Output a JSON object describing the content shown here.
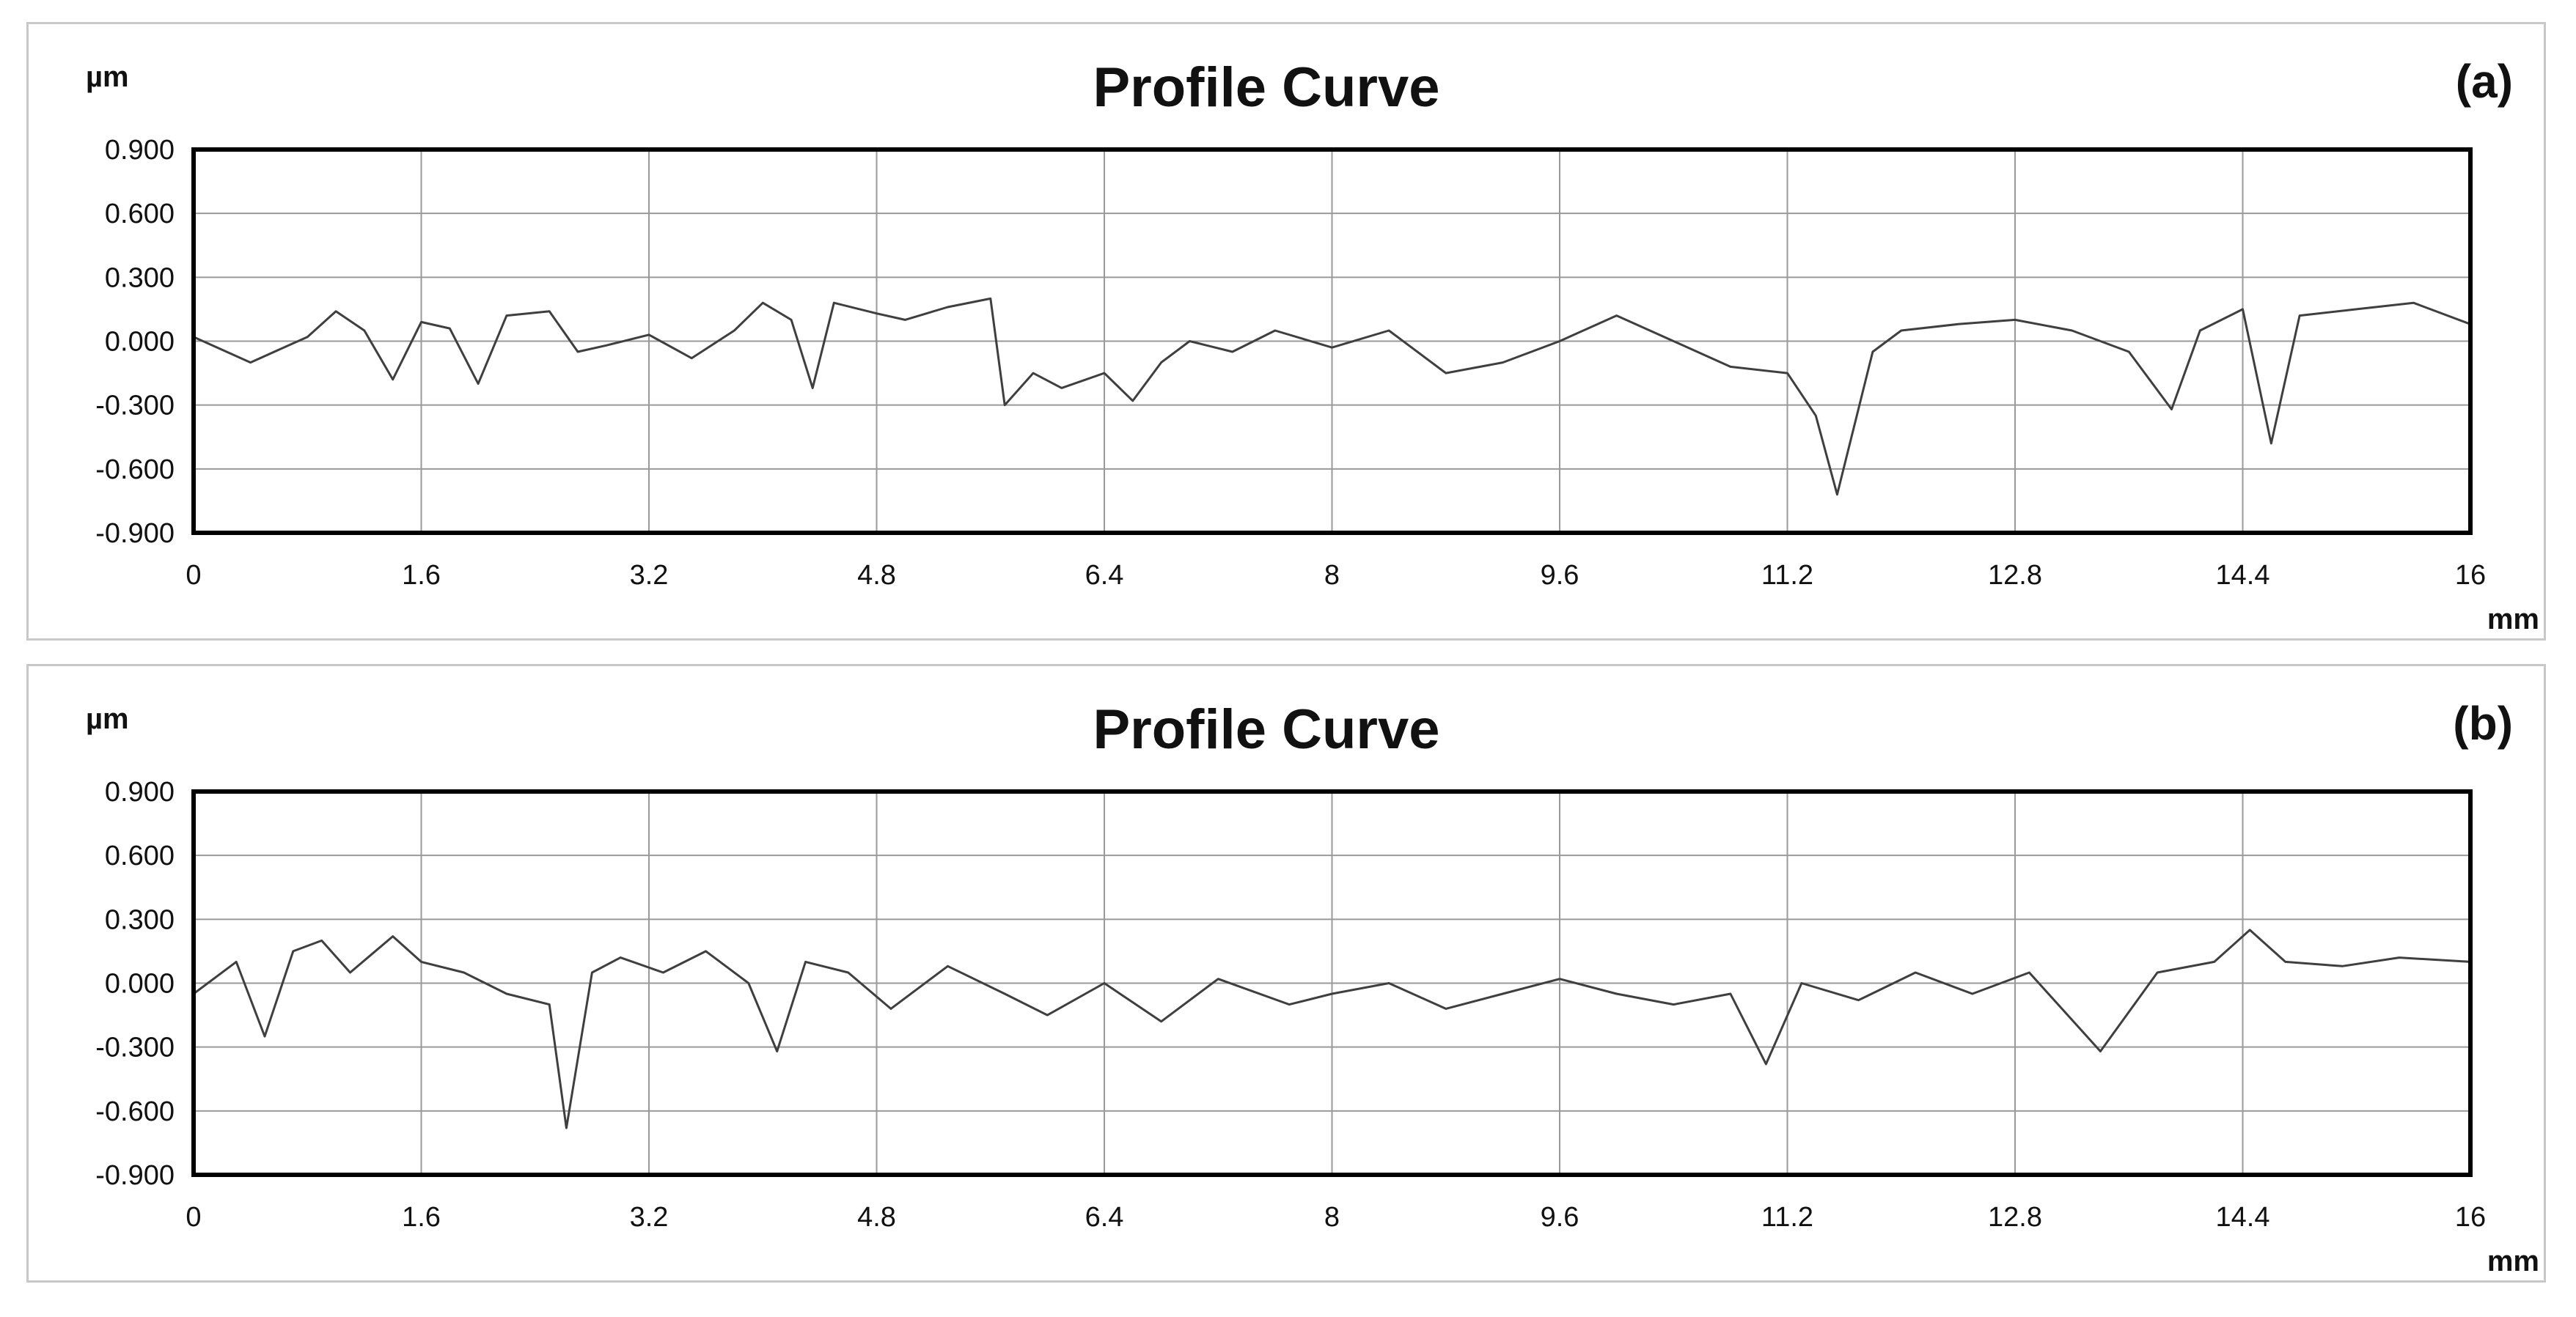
{
  "chart_data": [
    {
      "type": "line",
      "panel_label": "(a)",
      "title": "Profile Curve",
      "ylabel": "µm",
      "xlabel": "mm",
      "xlim": [
        0,
        16
      ],
      "ylim": [
        -0.9,
        0.9
      ],
      "x_ticks": [
        "0",
        "1.6",
        "3.2",
        "4.8",
        "6.4",
        "8",
        "9.6",
        "11.2",
        "12.8",
        "14.4",
        "16"
      ],
      "y_ticks": [
        "0.900",
        "0.600",
        "0.300",
        "0.000",
        "-0.300",
        "-0.600",
        "-0.900"
      ],
      "grid": true,
      "series": [
        {
          "x": [
            0,
            0.4,
            0.8,
            1.0,
            1.2,
            1.4,
            1.6,
            1.8,
            2.0,
            2.2,
            2.5,
            2.7,
            2.9,
            3.2,
            3.5,
            3.8,
            4.0,
            4.2,
            4.35,
            4.5,
            4.8,
            5.0,
            5.3,
            5.6,
            5.7,
            5.9,
            6.1,
            6.4,
            6.6,
            6.8,
            7.0,
            7.3,
            7.6,
            8.0,
            8.4,
            8.8,
            9.2,
            9.6,
            10.0,
            10.4,
            10.8,
            11.2,
            11.4,
            11.55,
            11.8,
            12.0,
            12.4,
            12.8,
            13.2,
            13.6,
            13.9,
            14.1,
            14.4,
            14.6,
            14.8,
            15.2,
            15.6,
            16.0
          ],
          "y": [
            0.02,
            -0.1,
            0.02,
            0.14,
            0.05,
            -0.18,
            0.09,
            0.06,
            -0.2,
            0.12,
            0.14,
            -0.05,
            -0.02,
            0.03,
            -0.08,
            0.05,
            0.18,
            0.1,
            -0.22,
            0.18,
            0.13,
            0.1,
            0.16,
            0.2,
            -0.3,
            -0.15,
            -0.22,
            -0.15,
            -0.28,
            -0.1,
            0.0,
            -0.05,
            0.05,
            -0.03,
            0.05,
            -0.15,
            -0.1,
            0.0,
            0.12,
            0.0,
            -0.12,
            -0.15,
            -0.35,
            -0.72,
            -0.05,
            0.05,
            0.08,
            0.1,
            0.05,
            -0.05,
            -0.32,
            0.05,
            0.15,
            -0.48,
            0.12,
            0.15,
            0.18,
            0.08
          ]
        }
      ]
    },
    {
      "type": "line",
      "panel_label": "(b)",
      "title": "Profile Curve",
      "ylabel": "µm",
      "xlabel": "mm",
      "xlim": [
        0,
        16
      ],
      "ylim": [
        -0.9,
        0.9
      ],
      "x_ticks": [
        "0",
        "1.6",
        "3.2",
        "4.8",
        "6.4",
        "8",
        "9.6",
        "11.2",
        "12.8",
        "14.4",
        "16"
      ],
      "y_ticks": [
        "0.900",
        "0.600",
        "0.300",
        "0.000",
        "-0.300",
        "-0.600",
        "-0.900"
      ],
      "grid": true,
      "series": [
        {
          "x": [
            0,
            0.3,
            0.5,
            0.7,
            0.9,
            1.1,
            1.4,
            1.6,
            1.9,
            2.2,
            2.5,
            2.62,
            2.8,
            3.0,
            3.3,
            3.6,
            3.9,
            4.1,
            4.3,
            4.6,
            4.9,
            5.3,
            5.7,
            6.0,
            6.4,
            6.8,
            7.2,
            7.7,
            8.0,
            8.4,
            8.8,
            9.2,
            9.6,
            10.0,
            10.4,
            10.8,
            11.05,
            11.3,
            11.7,
            12.1,
            12.5,
            12.9,
            13.4,
            13.8,
            14.2,
            14.45,
            14.7,
            15.1,
            15.5,
            16.0
          ],
          "y": [
            -0.05,
            0.1,
            -0.25,
            0.15,
            0.2,
            0.05,
            0.22,
            0.1,
            0.05,
            -0.05,
            -0.1,
            -0.68,
            0.05,
            0.12,
            0.05,
            0.15,
            0.0,
            -0.32,
            0.1,
            0.05,
            -0.12,
            0.08,
            -0.05,
            -0.15,
            0.0,
            -0.18,
            0.02,
            -0.1,
            -0.05,
            0.0,
            -0.12,
            -0.05,
            0.02,
            -0.05,
            -0.1,
            -0.05,
            -0.38,
            0.0,
            -0.08,
            0.05,
            -0.05,
            0.05,
            -0.32,
            0.05,
            0.1,
            0.25,
            0.1,
            0.08,
            0.12,
            0.1
          ]
        }
      ]
    }
  ]
}
